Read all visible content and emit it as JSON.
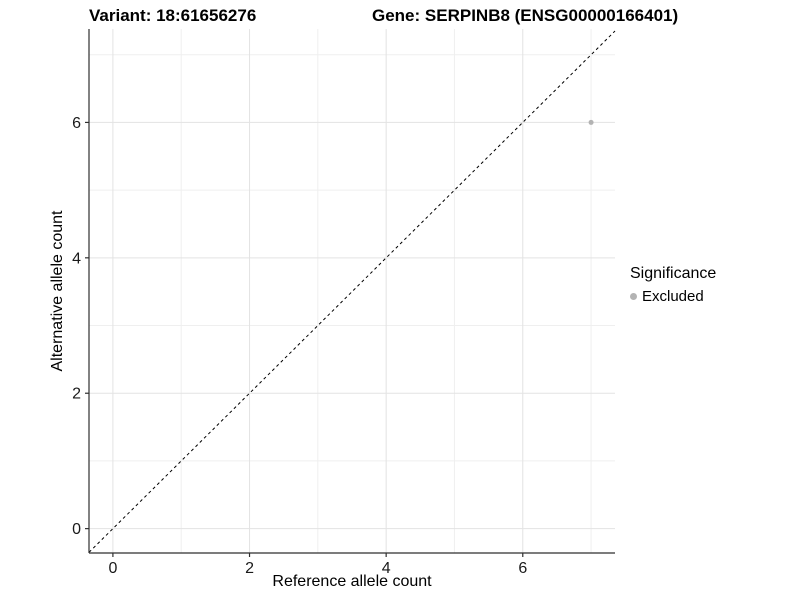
{
  "header": {
    "title_left": "Variant: 18:61656276",
    "title_right": "Gene: SERPINB8 (ENSG00000166401)"
  },
  "chart_data": {
    "type": "scatter",
    "xlabel": "Reference allele count",
    "ylabel": "Alternative allele count",
    "xlim": [
      -0.35,
      7.35
    ],
    "ylim": [
      -0.36,
      7.38
    ],
    "xticks": [
      0,
      2,
      4,
      6
    ],
    "yticks": [
      0,
      2,
      4,
      6
    ],
    "xticks_minor": [
      1,
      3,
      5,
      7
    ],
    "yticks_minor": [
      1,
      3,
      5,
      7
    ],
    "grid": "on",
    "identity_line": {
      "slope": 1,
      "intercept": 0,
      "style": "dashed",
      "color": "#000000"
    },
    "series": [
      {
        "name": "Excluded",
        "color": "#b3b3b3",
        "points": [
          {
            "x": 7,
            "y": 6
          }
        ]
      }
    ],
    "legend": {
      "title": "Significance",
      "position": "right",
      "entries": [
        {
          "label": "Excluded",
          "color": "#b3b3b3",
          "marker": "circle"
        }
      ]
    },
    "colors": {
      "axis": "#2f2f2f",
      "grid_major": "#e3e3e3",
      "grid_minor": "#efefef",
      "tick_text": "#1a1a1a"
    },
    "point_radius": 2.5
  }
}
